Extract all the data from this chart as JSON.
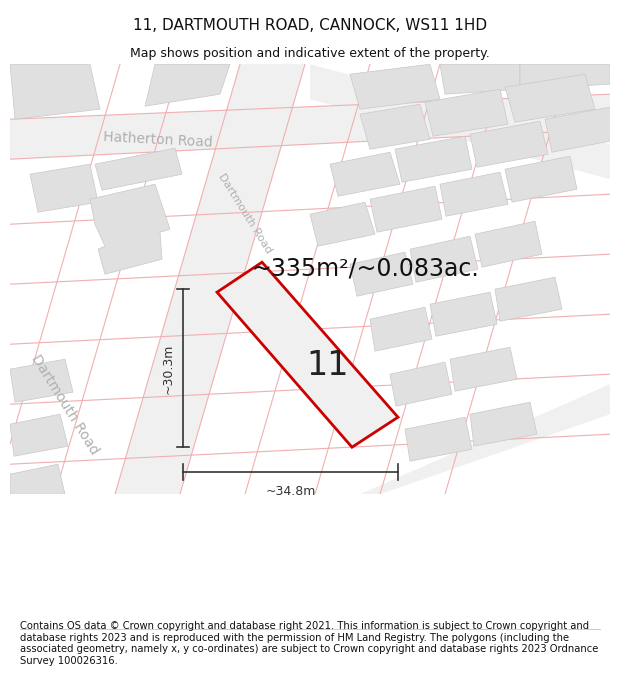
{
  "title": "11, DARTMOUTH ROAD, CANNOCK, WS11 1HD",
  "subtitle": "Map shows position and indicative extent of the property.",
  "area_text": "~335m²/~0.083ac.",
  "number_label": "11",
  "dim_width": "~34.8m",
  "dim_height": "~30.3m",
  "footer": "Contains OS data © Crown copyright and database right 2021. This information is subject to Crown copyright and database rights 2023 and is reproduced with the permission of HM Land Registry. The polygons (including the associated geometry, namely x, y co-ordinates) are subject to Crown copyright and database rights 2023 Ordnance Survey 100026316.",
  "bg_color": "#ffffff",
  "road_color": "#f0b0b0",
  "road_fill": "#ececec",
  "building_color": "#e0e0e0",
  "building_edge": "#c8c8c8",
  "road_area_color": "#e8e8e8",
  "road_label_color": "#b0b0b0",
  "highlight_color": "#cc0000",
  "highlight_fill": "#f0f0f0",
  "title_color": "#111111",
  "footer_color": "#111111",
  "dim_color": "#333333",
  "title_fontsize": 11,
  "subtitle_fontsize": 9,
  "footer_fontsize": 7.2,
  "area_fontsize": 17,
  "number_fontsize": 24,
  "road_label_fontsize": 10,
  "dim_fontsize": 9,
  "hatherton_label": "Hatherton Road",
  "dartmouth_label": "Dartmouth Road",
  "dartmouth_label2": "Dartmouth Road"
}
